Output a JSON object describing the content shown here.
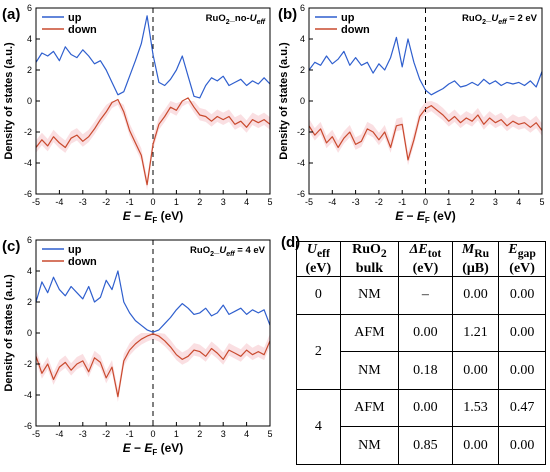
{
  "panels": {
    "a": {
      "label": "(a)",
      "title_main": "RuO",
      "title_sub": "2",
      "title_rest": "_no-",
      "title_u": "U",
      "title_usub": "eff",
      "title_tail": ""
    },
    "b": {
      "label": "(b)",
      "title_main": "RuO",
      "title_sub": "2",
      "title_rest": "_",
      "title_u": "U",
      "title_usub": "eff",
      "title_tail": " = 2 eV"
    },
    "c": {
      "label": "(c)",
      "title_main": "RuO",
      "title_sub": "2",
      "title_rest": "_",
      "title_u": "U",
      "title_usub": "eff",
      "title_tail": " = 4 eV"
    },
    "d": {
      "label": "(d)"
    }
  },
  "axis_text": {
    "ylabel": "Density of states (a.u.)",
    "xlabel_e": "E",
    "xlabel_minus": " − ",
    "xlabel_ef": "E",
    "xlabel_fsub": "F",
    "xlabel_unit": " (eV)"
  },
  "legend": {
    "up": "up",
    "down": "down"
  },
  "colors": {
    "up": "#2f5fce",
    "down": "#c94a2e",
    "shade": "#f6c9cf",
    "frame": "#000000"
  },
  "chart_data": [
    {
      "type": "line",
      "panel": "a",
      "xlim": [
        -5,
        5
      ],
      "ylim": [
        -6,
        6
      ],
      "xticks": [
        -5,
        -4,
        -3,
        -2,
        -1,
        0,
        1,
        2,
        3,
        4,
        5
      ],
      "yticks": [
        -6,
        -4,
        -2,
        0,
        2,
        4,
        6
      ],
      "grid": false,
      "legend_position": "top-left",
      "reference_line_x": 0,
      "series": [
        {
          "name": "up",
          "x": [
            -5,
            -4.75,
            -4.5,
            -4.25,
            -4,
            -3.75,
            -3.5,
            -3.25,
            -3,
            -2.75,
            -2.5,
            -2.25,
            -2,
            -1.75,
            -1.5,
            -1.25,
            -1,
            -0.75,
            -0.5,
            -0.25,
            0,
            0.25,
            0.5,
            0.75,
            1,
            1.25,
            1.5,
            1.75,
            2,
            2.25,
            2.5,
            2.75,
            3,
            3.25,
            3.5,
            3.75,
            4,
            4.25,
            4.5,
            4.75,
            5
          ],
          "y": [
            2.5,
            3.1,
            2.9,
            3.2,
            2.6,
            3.5,
            3.0,
            2.8,
            3.3,
            2.9,
            2.4,
            2.6,
            2.0,
            1.2,
            0.4,
            0.6,
            1.6,
            2.6,
            3.7,
            5.5,
            3.0,
            1.2,
            1.0,
            1.4,
            2.0,
            2.9,
            1.6,
            0.3,
            0.2,
            1.0,
            1.5,
            1.3,
            1.6,
            1.0,
            1.2,
            1.4,
            1.0,
            1.3,
            1.1,
            1.5,
            1.1
          ]
        },
        {
          "name": "down",
          "x": [
            -5,
            -4.75,
            -4.5,
            -4.25,
            -4,
            -3.75,
            -3.5,
            -3.25,
            -3,
            -2.75,
            -2.5,
            -2.25,
            -2,
            -1.75,
            -1.5,
            -1.25,
            -1,
            -0.75,
            -0.5,
            -0.25,
            0,
            0.25,
            0.5,
            0.75,
            1,
            1.25,
            1.5,
            1.75,
            2,
            2.25,
            2.5,
            2.75,
            3,
            3.25,
            3.5,
            3.75,
            4,
            4.25,
            4.5,
            4.75,
            5
          ],
          "y": [
            -3.0,
            -2.5,
            -2.9,
            -2.3,
            -2.7,
            -3.0,
            -2.4,
            -2.2,
            -2.6,
            -2.3,
            -1.8,
            -1.2,
            -0.7,
            -0.1,
            0.1,
            -0.7,
            -1.9,
            -2.7,
            -3.5,
            -5.4,
            -2.8,
            -1.5,
            -1.0,
            -0.4,
            -0.6,
            0.0,
            0.2,
            -0.4,
            -0.9,
            -1.0,
            -1.3,
            -1.0,
            -1.2,
            -1.0,
            -1.5,
            -1.3,
            -1.7,
            -1.2,
            -1.4,
            -1.2,
            -1.5
          ]
        }
      ]
    },
    {
      "type": "line",
      "panel": "b",
      "xlim": [
        -5,
        5
      ],
      "ylim": [
        -6,
        6
      ],
      "xticks": [
        -5,
        -4,
        -3,
        -2,
        -1,
        0,
        1,
        2,
        3,
        4,
        5
      ],
      "yticks": [
        -6,
        -4,
        -2,
        0,
        2,
        4,
        6
      ],
      "grid": false,
      "legend_position": "top-left",
      "reference_line_x": 0,
      "series": [
        {
          "name": "up",
          "x": [
            -5,
            -4.75,
            -4.5,
            -4.25,
            -4,
            -3.75,
            -3.5,
            -3.25,
            -3,
            -2.75,
            -2.5,
            -2.25,
            -2,
            -1.75,
            -1.5,
            -1.25,
            -1,
            -0.75,
            -0.5,
            -0.25,
            0,
            0.25,
            0.5,
            0.75,
            1,
            1.25,
            1.5,
            1.75,
            2,
            2.25,
            2.5,
            2.75,
            3,
            3.25,
            3.5,
            3.75,
            4,
            4.25,
            4.5,
            4.75,
            5
          ],
          "y": [
            2.0,
            2.5,
            2.3,
            2.9,
            2.4,
            2.7,
            3.2,
            2.3,
            2.8,
            2.3,
            2.5,
            1.8,
            2.4,
            2.0,
            2.8,
            4.1,
            2.2,
            4.0,
            2.5,
            1.4,
            0.7,
            0.4,
            0.6,
            0.8,
            1.1,
            1.3,
            0.9,
            1.0,
            1.2,
            1.0,
            1.4,
            1.1,
            1.3,
            1.0,
            1.2,
            1.1,
            1.2,
            1.0,
            1.3,
            0.9,
            1.9
          ]
        },
        {
          "name": "down",
          "x": [
            -5,
            -4.75,
            -4.5,
            -4.25,
            -4,
            -3.75,
            -3.5,
            -3.25,
            -3,
            -2.75,
            -2.5,
            -2.25,
            -2,
            -1.75,
            -1.5,
            -1.25,
            -1,
            -0.75,
            -0.5,
            -0.25,
            0,
            0.25,
            0.5,
            0.75,
            1,
            1.25,
            1.5,
            1.75,
            2,
            2.25,
            2.5,
            2.75,
            3,
            3.25,
            3.5,
            3.75,
            4,
            4.25,
            4.5,
            4.75,
            5
          ],
          "y": [
            -1.6,
            -2.2,
            -1.8,
            -2.7,
            -2.3,
            -3.0,
            -2.4,
            -2.0,
            -2.8,
            -2.6,
            -1.8,
            -2.0,
            -2.5,
            -2.0,
            -3.0,
            -1.6,
            -1.5,
            -3.8,
            -2.5,
            -1.0,
            -0.5,
            -0.3,
            -0.6,
            -0.9,
            -1.3,
            -1.0,
            -1.4,
            -1.1,
            -1.3,
            -0.9,
            -1.5,
            -1.1,
            -1.4,
            -1.2,
            -1.6,
            -1.3,
            -1.5,
            -1.4,
            -1.7,
            -1.4,
            -1.9
          ]
        }
      ]
    },
    {
      "type": "line",
      "panel": "c",
      "xlim": [
        -5,
        5
      ],
      "ylim": [
        -6,
        6
      ],
      "xticks": [
        -5,
        -4,
        -3,
        -2,
        -1,
        0,
        1,
        2,
        3,
        4,
        5
      ],
      "yticks": [
        -6,
        -4,
        -2,
        0,
        2,
        4,
        6
      ],
      "grid": false,
      "legend_position": "top-left",
      "reference_line_x": 0,
      "series": [
        {
          "name": "up",
          "x": [
            -5,
            -4.75,
            -4.5,
            -4.25,
            -4,
            -3.75,
            -3.5,
            -3.25,
            -3,
            -2.75,
            -2.5,
            -2.25,
            -2,
            -1.75,
            -1.5,
            -1.25,
            -1,
            -0.75,
            -0.5,
            -0.25,
            0,
            0.25,
            0.5,
            0.75,
            1,
            1.25,
            1.5,
            1.75,
            2,
            2.25,
            2.5,
            2.75,
            3,
            3.25,
            3.5,
            3.75,
            4,
            4.25,
            4.5,
            4.75,
            5
          ],
          "y": [
            2.0,
            3.3,
            2.6,
            3.6,
            2.8,
            2.4,
            3.0,
            2.6,
            2.2,
            3.0,
            2.0,
            2.3,
            3.4,
            2.8,
            4.0,
            2.0,
            1.3,
            0.8,
            0.5,
            0.2,
            0.05,
            0.2,
            0.6,
            1.0,
            1.5,
            1.9,
            1.6,
            1.2,
            1.3,
            1.6,
            1.1,
            1.3,
            1.8,
            1.2,
            1.4,
            1.6,
            1.2,
            1.5,
            1.3,
            1.5,
            0.5
          ]
        },
        {
          "name": "down",
          "x": [
            -5,
            -4.75,
            -4.5,
            -4.25,
            -4,
            -3.75,
            -3.5,
            -3.25,
            -3,
            -2.75,
            -2.5,
            -2.25,
            -2,
            -1.75,
            -1.5,
            -1.25,
            -1,
            -0.75,
            -0.5,
            -0.25,
            0,
            0.25,
            0.5,
            0.75,
            1,
            1.25,
            1.5,
            1.75,
            2,
            2.25,
            2.5,
            2.75,
            3,
            3.25,
            3.5,
            3.75,
            4,
            4.25,
            4.5,
            4.75,
            5
          ],
          "y": [
            -1.5,
            -2.6,
            -2.0,
            -3.0,
            -2.2,
            -1.9,
            -2.4,
            -2.0,
            -1.8,
            -2.5,
            -1.6,
            -1.9,
            -2.9,
            -2.2,
            -4.1,
            -1.8,
            -1.1,
            -0.7,
            -0.4,
            -0.2,
            -0.05,
            -0.2,
            -0.5,
            -0.9,
            -1.4,
            -1.7,
            -1.5,
            -1.1,
            -1.2,
            -1.5,
            -1.0,
            -1.3,
            -1.7,
            -1.1,
            -1.3,
            -1.5,
            -1.1,
            -1.4,
            -1.2,
            -1.4,
            -0.5
          ]
        }
      ]
    },
    {
      "type": "table",
      "panel": "d",
      "header": [
        {
          "main": "U",
          "sub": "eff",
          "unit": "(eV)"
        },
        {
          "main": "RuO",
          "sub": "2",
          "unit": "bulk"
        },
        {
          "main": "ΔE",
          "sub": "tot",
          "unit": "(eV)"
        },
        {
          "main": "M",
          "sub": "Ru",
          "unit": "(μB)"
        },
        {
          "main": "E",
          "sub": "gap",
          "unit": "(eV)"
        }
      ],
      "groups": [
        {
          "ueff": "0",
          "rows": [
            [
              "NM",
              "–",
              "0.00",
              "0.00"
            ]
          ]
        },
        {
          "ueff": "2",
          "rows": [
            [
              "AFM",
              "0.00",
              "1.21",
              "0.00"
            ],
            [
              "NM",
              "0.18",
              "0.00",
              "0.00"
            ]
          ]
        },
        {
          "ueff": "4",
          "rows": [
            [
              "AFM",
              "0.00",
              "1.53",
              "0.47"
            ],
            [
              "NM",
              "0.85",
              "0.00",
              "0.00"
            ]
          ]
        }
      ]
    }
  ]
}
